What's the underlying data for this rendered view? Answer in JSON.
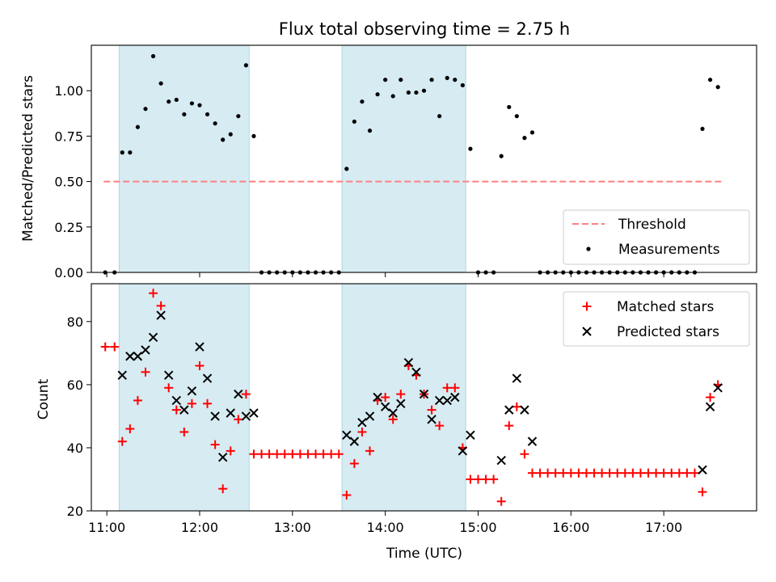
{
  "chart_data": [
    {
      "type": "scatter",
      "title": "Flux total observing time = 2.75 h",
      "xlabel": "",
      "ylabel": "Matched/Predicted stars",
      "xlim": [
        "10:50",
        "18:00"
      ],
      "ylim": [
        0,
        1.25
      ],
      "yticks": [
        "0.00",
        "0.25",
        "0.50",
        "0.75",
        "1.00"
      ],
      "grid": false,
      "legend_position": "lower-right",
      "shaded_ranges": [
        [
          "11:08",
          "12:32"
        ],
        [
          "13:32",
          "14:52"
        ]
      ],
      "shade_color": "#add8e6",
      "threshold": {
        "name": "Threshold",
        "y": 0.5,
        "x_range": [
          "10:58",
          "17:38"
        ],
        "color": "#ff7f7f",
        "style": "dashed"
      },
      "series": [
        {
          "name": "Measurements",
          "marker": "dot",
          "color": "#000000",
          "points": [
            [
              "10:59",
              0.0
            ],
            [
              "11:05",
              0.0
            ],
            [
              "11:10",
              0.66
            ],
            [
              "11:15",
              0.66
            ],
            [
              "11:20",
              0.8
            ],
            [
              "11:25",
              0.9
            ],
            [
              "11:30",
              1.19
            ],
            [
              "11:35",
              1.04
            ],
            [
              "11:40",
              0.94
            ],
            [
              "11:45",
              0.95
            ],
            [
              "11:50",
              0.87
            ],
            [
              "11:55",
              0.93
            ],
            [
              "12:00",
              0.92
            ],
            [
              "12:05",
              0.87
            ],
            [
              "12:10",
              0.82
            ],
            [
              "12:15",
              0.73
            ],
            [
              "12:20",
              0.76
            ],
            [
              "12:25",
              0.86
            ],
            [
              "12:30",
              1.14
            ],
            [
              "12:35",
              0.75
            ],
            [
              "12:40",
              0.0
            ],
            [
              "12:45",
              0.0
            ],
            [
              "12:50",
              0.0
            ],
            [
              "12:55",
              0.0
            ],
            [
              "13:00",
              0.0
            ],
            [
              "13:05",
              0.0
            ],
            [
              "13:10",
              0.0
            ],
            [
              "13:15",
              0.0
            ],
            [
              "13:20",
              0.0
            ],
            [
              "13:25",
              0.0
            ],
            [
              "13:30",
              0.0
            ],
            [
              "13:35",
              0.57
            ],
            [
              "13:40",
              0.83
            ],
            [
              "13:45",
              0.94
            ],
            [
              "13:50",
              0.78
            ],
            [
              "13:55",
              0.98
            ],
            [
              "14:00",
              1.06
            ],
            [
              "14:05",
              0.97
            ],
            [
              "14:10",
              1.06
            ],
            [
              "14:15",
              0.99
            ],
            [
              "14:20",
              0.99
            ],
            [
              "14:25",
              1.0
            ],
            [
              "14:30",
              1.06
            ],
            [
              "14:35",
              0.86
            ],
            [
              "14:40",
              1.07
            ],
            [
              "14:45",
              1.06
            ],
            [
              "14:50",
              1.03
            ],
            [
              "14:55",
              0.68
            ],
            [
              "15:00",
              0.0
            ],
            [
              "15:05",
              0.0
            ],
            [
              "15:10",
              0.0
            ],
            [
              "15:15",
              0.64
            ],
            [
              "15:20",
              0.91
            ],
            [
              "15:25",
              0.86
            ],
            [
              "15:30",
              0.74
            ],
            [
              "15:35",
              0.77
            ],
            [
              "15:40",
              0.0
            ],
            [
              "15:45",
              0.0
            ],
            [
              "15:50",
              0.0
            ],
            [
              "15:55",
              0.0
            ],
            [
              "16:00",
              0.0
            ],
            [
              "16:05",
              0.0
            ],
            [
              "16:10",
              0.0
            ],
            [
              "16:15",
              0.0
            ],
            [
              "16:20",
              0.0
            ],
            [
              "16:25",
              0.0
            ],
            [
              "16:30",
              0.0
            ],
            [
              "16:35",
              0.0
            ],
            [
              "16:40",
              0.0
            ],
            [
              "16:45",
              0.0
            ],
            [
              "16:50",
              0.0
            ],
            [
              "16:55",
              0.0
            ],
            [
              "17:00",
              0.0
            ],
            [
              "17:05",
              0.0
            ],
            [
              "17:10",
              0.0
            ],
            [
              "17:15",
              0.0
            ],
            [
              "17:20",
              0.0
            ],
            [
              "17:25",
              0.79
            ],
            [
              "17:30",
              1.06
            ],
            [
              "17:35",
              1.02
            ]
          ]
        }
      ]
    },
    {
      "type": "scatter",
      "title": "",
      "xlabel": "Time (UTC)",
      "ylabel": "Count",
      "xlim": [
        "10:50",
        "18:00"
      ],
      "ylim": [
        20,
        92
      ],
      "yticks": [
        "20",
        "40",
        "60",
        "80"
      ],
      "xticks": [
        "11:00",
        "12:00",
        "13:00",
        "14:00",
        "15:00",
        "16:00",
        "17:00"
      ],
      "grid": false,
      "legend_position": "top-right",
      "shaded_ranges": [
        [
          "11:08",
          "12:32"
        ],
        [
          "13:32",
          "14:52"
        ]
      ],
      "shade_color": "#add8e6",
      "series": [
        {
          "name": "Matched stars",
          "marker": "plus",
          "color": "#ff0000",
          "points": [
            [
              "10:59",
              72
            ],
            [
              "11:05",
              72
            ],
            [
              "11:10",
              42
            ],
            [
              "11:15",
              46
            ],
            [
              "11:20",
              55
            ],
            [
              "11:25",
              64
            ],
            [
              "11:30",
              89
            ],
            [
              "11:35",
              85
            ],
            [
              "11:40",
              59
            ],
            [
              "11:45",
              52
            ],
            [
              "11:50",
              45
            ],
            [
              "11:55",
              54
            ],
            [
              "12:00",
              66
            ],
            [
              "12:05",
              54
            ],
            [
              "12:10",
              41
            ],
            [
              "12:15",
              27
            ],
            [
              "12:20",
              39
            ],
            [
              "12:25",
              49
            ],
            [
              "12:30",
              57
            ],
            [
              "12:35",
              38
            ],
            [
              "12:40",
              38
            ],
            [
              "12:45",
              38
            ],
            [
              "12:50",
              38
            ],
            [
              "12:55",
              38
            ],
            [
              "13:00",
              38
            ],
            [
              "13:05",
              38
            ],
            [
              "13:10",
              38
            ],
            [
              "13:15",
              38
            ],
            [
              "13:20",
              38
            ],
            [
              "13:25",
              38
            ],
            [
              "13:30",
              38
            ],
            [
              "13:35",
              25
            ],
            [
              "13:40",
              35
            ],
            [
              "13:45",
              45
            ],
            [
              "13:50",
              39
            ],
            [
              "13:55",
              55
            ],
            [
              "14:00",
              56
            ],
            [
              "14:05",
              49
            ],
            [
              "14:10",
              57
            ],
            [
              "14:15",
              66
            ],
            [
              "14:20",
              63
            ],
            [
              "14:25",
              57
            ],
            [
              "14:30",
              52
            ],
            [
              "14:35",
              47
            ],
            [
              "14:40",
              59
            ],
            [
              "14:45",
              59
            ],
            [
              "14:50",
              40
            ],
            [
              "14:55",
              30
            ],
            [
              "15:00",
              30
            ],
            [
              "15:05",
              30
            ],
            [
              "15:10",
              30
            ],
            [
              "15:15",
              23
            ],
            [
              "15:20",
              47
            ],
            [
              "15:25",
              53
            ],
            [
              "15:30",
              38
            ],
            [
              "15:35",
              32
            ],
            [
              "15:40",
              32
            ],
            [
              "15:45",
              32
            ],
            [
              "15:50",
              32
            ],
            [
              "15:55",
              32
            ],
            [
              "16:00",
              32
            ],
            [
              "16:05",
              32
            ],
            [
              "16:10",
              32
            ],
            [
              "16:15",
              32
            ],
            [
              "16:20",
              32
            ],
            [
              "16:25",
              32
            ],
            [
              "16:30",
              32
            ],
            [
              "16:35",
              32
            ],
            [
              "16:40",
              32
            ],
            [
              "16:45",
              32
            ],
            [
              "16:50",
              32
            ],
            [
              "16:55",
              32
            ],
            [
              "17:00",
              32
            ],
            [
              "17:05",
              32
            ],
            [
              "17:10",
              32
            ],
            [
              "17:15",
              32
            ],
            [
              "17:20",
              32
            ],
            [
              "17:25",
              26
            ],
            [
              "17:30",
              56
            ],
            [
              "17:35",
              60
            ]
          ]
        },
        {
          "name": "Predicted stars",
          "marker": "x",
          "color": "#000000",
          "points": [
            [
              "11:10",
              63
            ],
            [
              "11:15",
              69
            ],
            [
              "11:20",
              69
            ],
            [
              "11:25",
              71
            ],
            [
              "11:30",
              75
            ],
            [
              "11:35",
              82
            ],
            [
              "11:40",
              63
            ],
            [
              "11:45",
              55
            ],
            [
              "11:50",
              52
            ],
            [
              "11:55",
              58
            ],
            [
              "12:00",
              72
            ],
            [
              "12:05",
              62
            ],
            [
              "12:10",
              50
            ],
            [
              "12:15",
              37
            ],
            [
              "12:20",
              51
            ],
            [
              "12:25",
              57
            ],
            [
              "12:30",
              50
            ],
            [
              "12:35",
              51
            ],
            [
              "13:35",
              44
            ],
            [
              "13:40",
              42
            ],
            [
              "13:45",
              48
            ],
            [
              "13:50",
              50
            ],
            [
              "13:55",
              56
            ],
            [
              "14:00",
              53
            ],
            [
              "14:05",
              51
            ],
            [
              "14:10",
              54
            ],
            [
              "14:15",
              67
            ],
            [
              "14:20",
              64
            ],
            [
              "14:25",
              57
            ],
            [
              "14:30",
              49
            ],
            [
              "14:35",
              55
            ],
            [
              "14:40",
              55
            ],
            [
              "14:45",
              56
            ],
            [
              "14:50",
              39
            ],
            [
              "14:55",
              44
            ],
            [
              "15:15",
              36
            ],
            [
              "15:20",
              52
            ],
            [
              "15:25",
              62
            ],
            [
              "15:30",
              52
            ],
            [
              "15:35",
              42
            ],
            [
              "17:25",
              33
            ],
            [
              "17:30",
              53
            ],
            [
              "17:35",
              59
            ]
          ]
        }
      ]
    }
  ]
}
